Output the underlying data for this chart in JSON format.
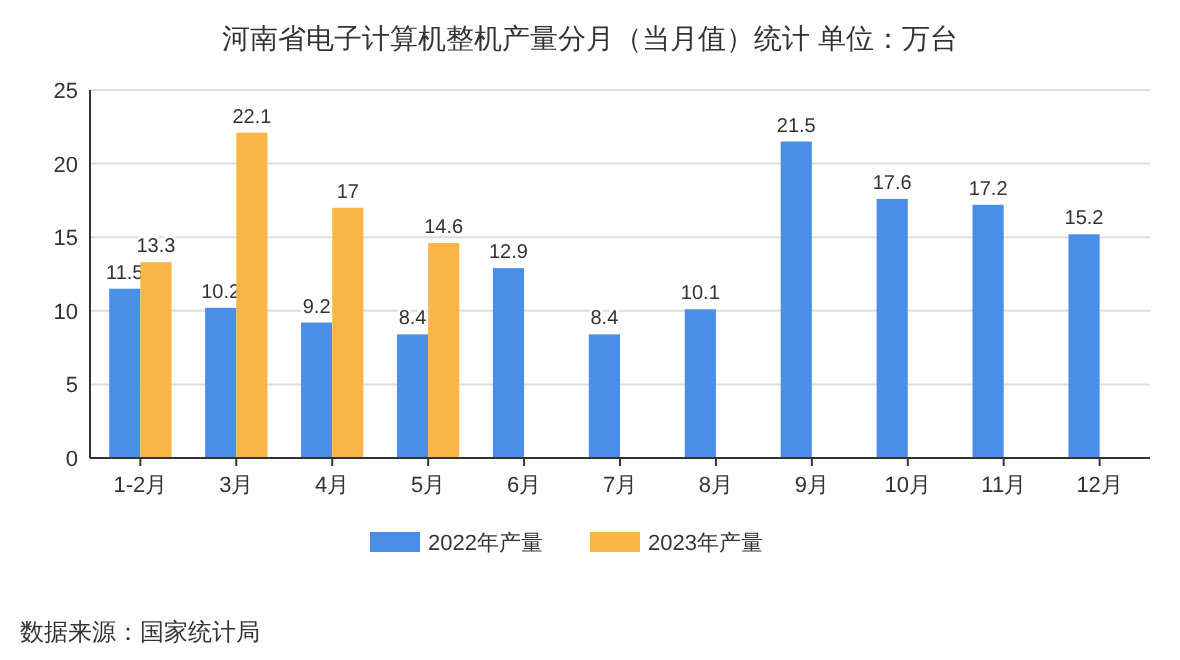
{
  "chart_data": {
    "type": "bar",
    "title": "河南省电子计算机整机产量分月（当月值）统计  单位：万台",
    "categories": [
      "1-2月",
      "3月",
      "4月",
      "5月",
      "6月",
      "7月",
      "8月",
      "9月",
      "10月",
      "11月",
      "12月"
    ],
    "series": [
      {
        "name": "2022年产量",
        "color": "#4a8ee8",
        "values": [
          11.5,
          10.2,
          9.2,
          8.4,
          12.9,
          8.4,
          10.1,
          21.5,
          17.6,
          17.2,
          15.2
        ]
      },
      {
        "name": "2023年产量",
        "color": "#fab548",
        "values": [
          13.3,
          22.1,
          17,
          14.6,
          null,
          null,
          null,
          null,
          null,
          null,
          null
        ]
      }
    ],
    "ylim": [
      0,
      25
    ],
    "yticks": [
      0,
      5,
      10,
      15,
      20,
      25
    ],
    "grid": "y",
    "legend": "bottom",
    "data_labels": true,
    "annotations": [
      "数据来源：国家统计局"
    ]
  }
}
